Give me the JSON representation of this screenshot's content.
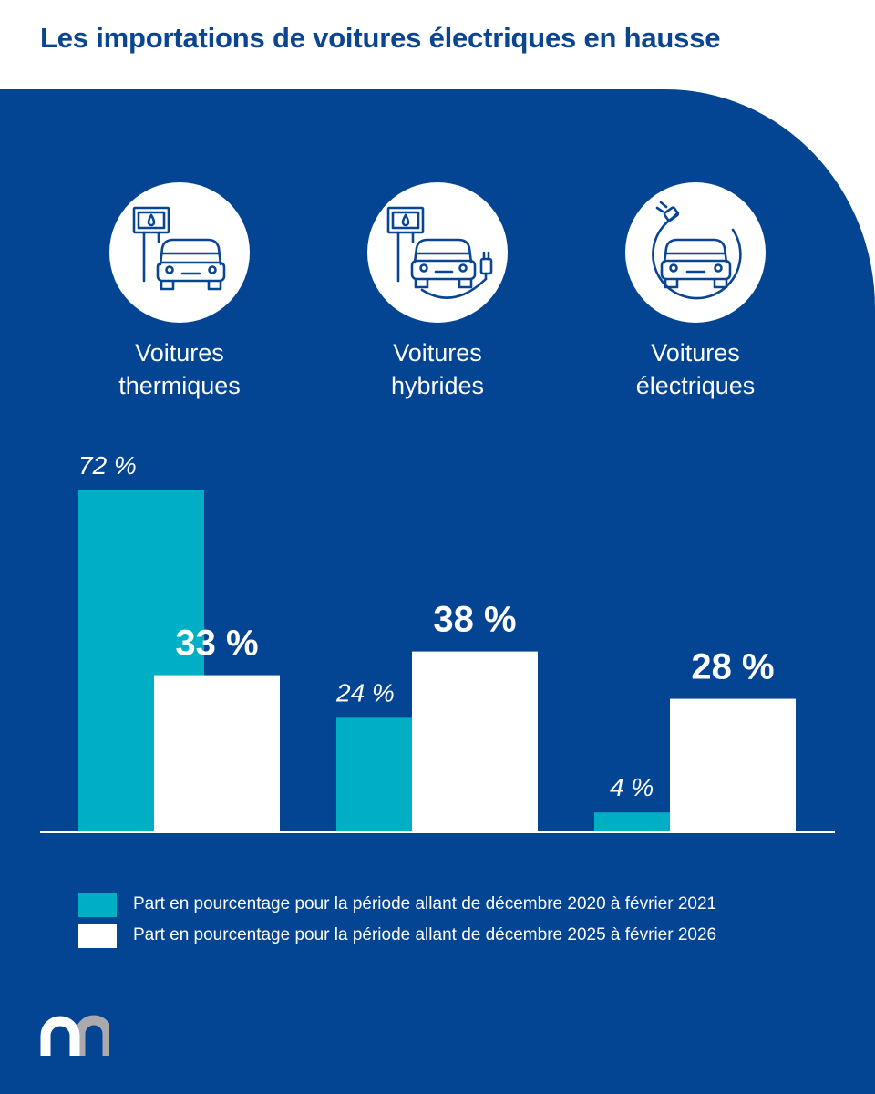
{
  "title": "Les importations de voitures électriques en hausse",
  "categories": [
    {
      "label_lines": [
        "Voitures",
        "thermiques"
      ],
      "icon": "fuel-pump-car-icon"
    },
    {
      "label_lines": [
        "Voitures",
        "hybrides"
      ],
      "icon": "hybrid-car-plug-icon"
    },
    {
      "label_lines": [
        "Voitures",
        "électriques"
      ],
      "icon": "electric-car-plug-icon"
    }
  ],
  "legend": [
    {
      "label": "Part en pourcentage pour la période allant de décembre 2020 à février 2021",
      "color": "#00afc4"
    },
    {
      "label": "Part en pourcentage pour la période allant de décembre 2025 à février 2026",
      "color": "#ffffff"
    }
  ],
  "colors": {
    "title": "#0a4592",
    "background_panel": "#034593",
    "series_2021": "#00afc4",
    "series_2026": "#ffffff"
  },
  "logo": "m-logo",
  "chart_data": {
    "type": "bar",
    "categories": [
      "Voitures thermiques",
      "Voitures hybrides",
      "Voitures électriques"
    ],
    "series": [
      {
        "name": "Part en pourcentage pour la période allant de décembre 2020 à février 2021",
        "values": [
          72,
          24,
          4
        ],
        "labels": [
          "72 %",
          "24 %",
          "4 %"
        ],
        "color": "#00afc4"
      },
      {
        "name": "Part en pourcentage pour la période allant de décembre 2025 à février 2026",
        "values": [
          33,
          38,
          28
        ],
        "labels": [
          "33 %",
          "38 %",
          "28 %"
        ],
        "color": "#ffffff"
      }
    ],
    "unit": "%",
    "ylim": [
      0,
      72
    ],
    "grid": false,
    "legend_position": "bottom"
  }
}
